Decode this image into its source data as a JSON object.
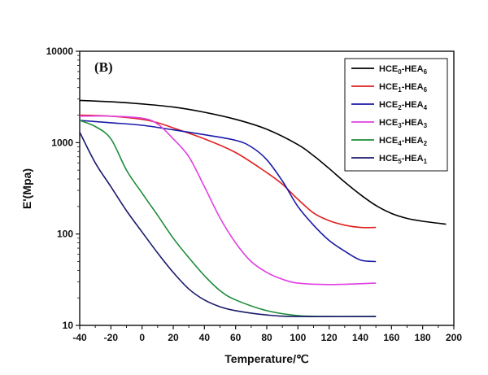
{
  "chart_data": {
    "type": "line",
    "panel_label": "(B)",
    "xlabel": "Temperature/℃",
    "ylabel": "E'(Mpa)",
    "xlim": [
      -40,
      200
    ],
    "ylim": [
      10,
      10000
    ],
    "yscale": "log",
    "x_ticks": [
      -40,
      -20,
      0,
      20,
      40,
      60,
      80,
      100,
      120,
      140,
      160,
      180,
      200
    ],
    "x_tick_labels": [
      "-40",
      "-20",
      "0",
      "20",
      "40",
      "60",
      "80",
      "100",
      "120",
      "140",
      "160",
      "180",
      "200"
    ],
    "y_ticks": [
      10,
      100,
      1000,
      10000
    ],
    "y_tick_labels": [
      "10",
      "100",
      "1000",
      "10000"
    ],
    "grid": false,
    "legend_position": "top-right",
    "series": [
      {
        "name": "HCE0-HEA6",
        "legend": {
          "a": "HCE",
          "a_sub": "0",
          "b": "-HEA",
          "b_sub": "6"
        },
        "color": "#000000",
        "x": [
          -40,
          -20,
          0,
          20,
          40,
          60,
          80,
          100,
          110,
          120,
          130,
          140,
          150,
          160,
          170,
          180,
          195
        ],
        "y": [
          2900,
          2800,
          2650,
          2450,
          2150,
          1800,
          1400,
          950,
          720,
          520,
          370,
          270,
          205,
          168,
          148,
          138,
          128
        ]
      },
      {
        "name": "HCE1-HEA6",
        "legend": {
          "a": "HCE",
          "a_sub": "1",
          "b": "-HEA",
          "b_sub": "6"
        },
        "color": "#e02020",
        "x": [
          -40,
          -20,
          0,
          10,
          20,
          40,
          60,
          80,
          90,
          100,
          110,
          120,
          130,
          140,
          150
        ],
        "y": [
          2000,
          1950,
          1800,
          1650,
          1450,
          1100,
          780,
          470,
          350,
          240,
          170,
          140,
          125,
          118,
          118
        ]
      },
      {
        "name": "HCE2-HEA4",
        "legend": {
          "a": "HCE",
          "a_sub": "2",
          "b": "-HEA",
          "b_sub": "4"
        },
        "color": "#1a1aa8",
        "x": [
          -40,
          -20,
          0,
          20,
          40,
          60,
          70,
          80,
          90,
          100,
          110,
          120,
          130,
          140,
          150
        ],
        "y": [
          1750,
          1650,
          1550,
          1380,
          1220,
          1060,
          900,
          650,
          380,
          200,
          125,
          85,
          65,
          52,
          50
        ]
      },
      {
        "name": "HCE3-HEA3",
        "legend": {
          "a": "HCE",
          "a_sub": "3",
          "b": "-HEA",
          "b_sub": "3"
        },
        "color": "#e040e0",
        "x": [
          -40,
          -20,
          0,
          10,
          20,
          30,
          40,
          50,
          60,
          70,
          80,
          90,
          100,
          120,
          150
        ],
        "y": [
          1950,
          1950,
          1850,
          1600,
          1100,
          700,
          330,
          150,
          80,
          50,
          38,
          32,
          29,
          28,
          29
        ]
      },
      {
        "name": "HCE4-HEA2",
        "legend": {
          "a": "HCE",
          "a_sub": "4",
          "b": "-HEA",
          "b_sub": "2"
        },
        "color": "#1e8c3a",
        "x": [
          -40,
          -30,
          -20,
          -10,
          0,
          10,
          20,
          30,
          40,
          50,
          60,
          80,
          100,
          120,
          150
        ],
        "y": [
          1750,
          1500,
          1100,
          500,
          280,
          160,
          90,
          55,
          35,
          24,
          19,
          14.5,
          12.8,
          12.5,
          12.5
        ]
      },
      {
        "name": "HCE5-HEA1",
        "legend": {
          "a": "HCE",
          "a_sub": "5",
          "b": "-HEA",
          "b_sub": "1"
        },
        "color": "#1a1a6a",
        "x": [
          -40,
          -30,
          -20,
          -10,
          0,
          10,
          20,
          30,
          40,
          50,
          60,
          80,
          100,
          150
        ],
        "y": [
          1300,
          600,
          330,
          180,
          105,
          62,
          38,
          25,
          19,
          16,
          14.5,
          13,
          12.5,
          12.5
        ]
      }
    ]
  }
}
